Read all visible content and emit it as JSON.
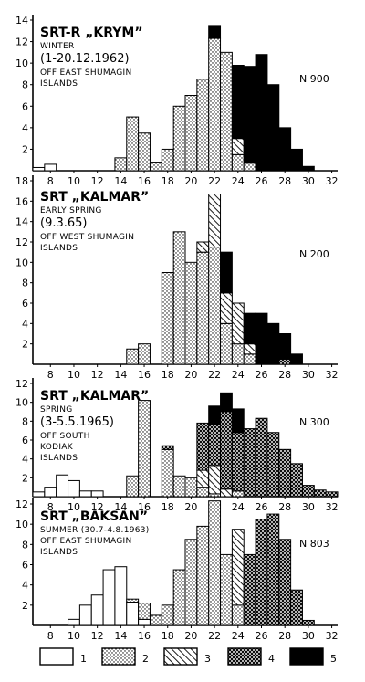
{
  "chart_data": [
    {
      "type": "bar",
      "stacked": true,
      "title": "SRT-R „KRYM”",
      "lines": [
        "WINTER",
        "(1-20.12.1962)",
        "OFF EAST SHUMAGIN",
        "ISLANDS"
      ],
      "n_label": "N 900",
      "x": [
        7,
        8,
        9,
        10,
        11,
        12,
        13,
        14,
        15,
        16,
        17,
        18,
        19,
        20,
        21,
        22,
        23,
        24,
        25,
        26,
        27,
        28,
        29,
        30,
        31
      ],
      "series": [
        {
          "name": "1",
          "values": [
            0.3,
            0.6,
            0,
            0,
            0,
            0,
            0,
            0,
            0,
            0,
            0,
            0,
            0,
            0,
            0,
            0,
            0,
            0,
            0,
            0,
            0,
            0,
            0,
            0,
            0
          ]
        },
        {
          "name": "2",
          "values": [
            0,
            0,
            0,
            0,
            0,
            0,
            0,
            1.2,
            5,
            3.5,
            0.8,
            2,
            6,
            7,
            8.5,
            12.3,
            11,
            1.5,
            0.7,
            0,
            0,
            0,
            0,
            0,
            0
          ]
        },
        {
          "name": "3",
          "values": [
            0,
            0,
            0,
            0,
            0,
            0,
            0,
            0,
            0,
            0,
            0,
            0,
            0,
            0,
            0,
            0,
            0,
            1.5,
            0,
            0,
            0,
            0,
            0,
            0,
            0
          ]
        },
        {
          "name": "4",
          "values": [
            0,
            0,
            0,
            0,
            0,
            0,
            0,
            0,
            0,
            0,
            0,
            0,
            0,
            0,
            0,
            0,
            0,
            0,
            0,
            0,
            0,
            0,
            0,
            0,
            0
          ]
        },
        {
          "name": "5",
          "values": [
            0,
            0,
            0,
            0,
            0,
            0,
            0,
            0,
            0,
            0,
            0,
            0,
            0,
            0,
            0,
            1.2,
            0,
            6.8,
            9,
            10.8,
            8,
            4,
            2,
            0.4,
            0
          ]
        }
      ],
      "ylim": [
        0,
        14
      ],
      "yticks": [
        2,
        4,
        6,
        8,
        10,
        12,
        14
      ],
      "xticks": [
        8,
        10,
        12,
        14,
        16,
        18,
        20,
        22,
        24,
        26,
        28,
        30,
        32
      ],
      "xlim": [
        6.5,
        32.5
      ]
    },
    {
      "type": "bar",
      "stacked": true,
      "title": "SRT „KALMAR”",
      "lines": [
        "EARLY SPRING",
        "(9.3.65)",
        "OFF WEST SHUMAGIN",
        "ISLANDS"
      ],
      "n_label": "N 200",
      "x": [
        7,
        8,
        9,
        10,
        11,
        12,
        13,
        14,
        15,
        16,
        17,
        18,
        19,
        20,
        21,
        22,
        23,
        24,
        25,
        26,
        27,
        28,
        29,
        30,
        31
      ],
      "series": [
        {
          "name": "1",
          "values": [
            0,
            0,
            0,
            0,
            0,
            0,
            0,
            0,
            0,
            0,
            0,
            0,
            0,
            0,
            0,
            0,
            0,
            0,
            0,
            0,
            0,
            0,
            0,
            0,
            0
          ]
        },
        {
          "name": "2",
          "values": [
            0,
            0,
            0,
            0,
            0,
            0,
            0,
            0,
            1.5,
            2,
            0,
            9,
            13,
            10,
            11,
            11.5,
            4,
            2,
            1,
            0,
            0,
            0,
            0,
            0,
            0
          ]
        },
        {
          "name": "3",
          "values": [
            0,
            0,
            0,
            0,
            0,
            0,
            0,
            0,
            0,
            0,
            0,
            0,
            0,
            0,
            1,
            5.2,
            3,
            4,
            1,
            0,
            0,
            0,
            0,
            0,
            0
          ]
        },
        {
          "name": "4",
          "values": [
            0,
            0,
            0,
            0,
            0,
            0,
            0,
            0,
            0,
            0,
            0,
            0,
            0,
            0,
            0,
            0,
            0,
            0,
            0,
            0,
            0,
            0.5,
            0,
            0,
            0
          ]
        },
        {
          "name": "5",
          "values": [
            0,
            0,
            0,
            0,
            0,
            0,
            0,
            0,
            0,
            0,
            0,
            0,
            0,
            0,
            0,
            0,
            4,
            0,
            3,
            5,
            4,
            2.5,
            1,
            0,
            0
          ]
        }
      ],
      "ylim": [
        0,
        18
      ],
      "yticks": [
        2,
        4,
        6,
        8,
        10,
        12,
        14,
        16,
        18
      ],
      "xticks": [
        8,
        10,
        12,
        14,
        16,
        18,
        20,
        22,
        24,
        26,
        28,
        30,
        32
      ],
      "xlim": [
        6.5,
        32.5
      ]
    },
    {
      "type": "bar",
      "stacked": true,
      "title": "SRT „KALMAR”",
      "lines": [
        "SPRING",
        "(3-5.5.1965)",
        "OFF SOUTH",
        "KODIAK",
        "ISLANDS"
      ],
      "n_label": "N 300",
      "x": [
        7,
        8,
        9,
        10,
        11,
        12,
        13,
        14,
        15,
        16,
        17,
        18,
        19,
        20,
        21,
        22,
        23,
        24,
        25,
        26,
        27,
        28,
        29,
        30,
        31,
        32
      ],
      "series": [
        {
          "name": "1",
          "values": [
            0.5,
            1,
            2.3,
            1.7,
            0.6,
            0.6,
            0,
            0,
            0,
            0,
            0,
            0,
            0,
            0,
            0,
            0,
            0,
            0,
            0,
            0,
            0,
            0,
            0,
            0,
            0,
            0
          ]
        },
        {
          "name": "2",
          "values": [
            0,
            0,
            0,
            0,
            0,
            0,
            0,
            0,
            2.2,
            10.2,
            0,
            5,
            2.2,
            2,
            1,
            0.3,
            0,
            0.6,
            0,
            0,
            0,
            0,
            0,
            0,
            0,
            0
          ]
        },
        {
          "name": "3",
          "values": [
            0,
            0,
            0,
            0,
            0,
            0,
            0,
            0,
            0,
            0,
            0,
            0,
            0,
            0,
            1.8,
            3,
            0.8,
            0,
            0,
            0,
            0,
            0,
            0,
            0,
            0,
            0
          ]
        },
        {
          "name": "4",
          "values": [
            0,
            0,
            0,
            0,
            0,
            0,
            0,
            0,
            0,
            0,
            0,
            0.4,
            0,
            0,
            5,
            4.3,
            8.2,
            6.2,
            7.2,
            8.3,
            6.8,
            5,
            3.5,
            1.2,
            0.7,
            0.5
          ]
        },
        {
          "name": "5",
          "values": [
            0,
            0,
            0,
            0,
            0,
            0,
            0,
            0,
            0,
            0,
            0,
            0,
            0,
            0,
            0,
            2,
            2,
            2.5,
            0,
            0,
            0,
            0,
            0,
            0,
            0,
            0
          ]
        }
      ],
      "ylim": [
        0,
        12
      ],
      "yticks": [
        2,
        4,
        6,
        8,
        10,
        12
      ],
      "xticks": [
        8,
        10,
        12,
        14,
        16,
        18,
        20,
        22,
        24,
        26,
        28,
        30,
        32
      ],
      "xlim": [
        6.5,
        32.5
      ]
    },
    {
      "type": "bar",
      "stacked": true,
      "title": "SRT „BAKSAN”",
      "lines": [
        "SUMMER (30.7-4.8.1963)",
        "OFF EAST SHUMAGIN",
        "ISLANDS"
      ],
      "n_label": "N 803",
      "x": [
        7,
        8,
        9,
        10,
        11,
        12,
        13,
        14,
        15,
        16,
        17,
        18,
        19,
        20,
        21,
        22,
        23,
        24,
        25,
        26,
        27,
        28,
        29,
        30,
        31
      ],
      "series": [
        {
          "name": "1",
          "values": [
            0,
            0,
            0,
            0.6,
            2,
            3,
            5.5,
            5.8,
            2.3,
            0.6,
            0,
            0,
            0,
            0,
            0,
            0,
            0,
            0,
            0,
            0,
            0,
            0,
            0,
            0,
            0
          ]
        },
        {
          "name": "2",
          "values": [
            0,
            0,
            0,
            0,
            0,
            0,
            0,
            0,
            0.3,
            1.6,
            1,
            2,
            5.5,
            8.5,
            9.8,
            12.3,
            7,
            2,
            0,
            0,
            0,
            0,
            0,
            0,
            0
          ]
        },
        {
          "name": "3",
          "values": [
            0,
            0,
            0,
            0,
            0,
            0,
            0,
            0,
            0,
            0,
            0,
            0,
            0,
            0,
            0,
            0,
            0,
            7.5,
            0,
            0,
            0,
            0,
            0,
            0,
            0
          ]
        },
        {
          "name": "4",
          "values": [
            0,
            0,
            0,
            0,
            0,
            0,
            0,
            0,
            0,
            0,
            0,
            0,
            0,
            0,
            0,
            0,
            0,
            0,
            7,
            10.5,
            11,
            8.5,
            3.5,
            0.5,
            0
          ]
        },
        {
          "name": "5",
          "values": [
            0,
            0,
            0,
            0,
            0,
            0,
            0,
            0,
            0,
            0,
            0,
            0,
            0,
            0,
            0,
            0,
            0,
            0,
            0,
            0,
            0,
            0,
            0,
            0,
            0
          ]
        }
      ],
      "ylim": [
        0,
        12
      ],
      "yticks": [
        2,
        4,
        6,
        8,
        10,
        12
      ],
      "xticks": [
        8,
        10,
        12,
        14,
        16,
        18,
        20,
        22,
        24,
        26,
        28,
        30,
        32
      ],
      "xlim": [
        6.5,
        32.5
      ]
    }
  ],
  "legend": [
    {
      "label": "1",
      "pattern": "white"
    },
    {
      "label": "2",
      "pattern": "dots"
    },
    {
      "label": "3",
      "pattern": "hatch"
    },
    {
      "label": "4",
      "pattern": "crosshatch"
    },
    {
      "label": "5",
      "pattern": "black"
    }
  ]
}
